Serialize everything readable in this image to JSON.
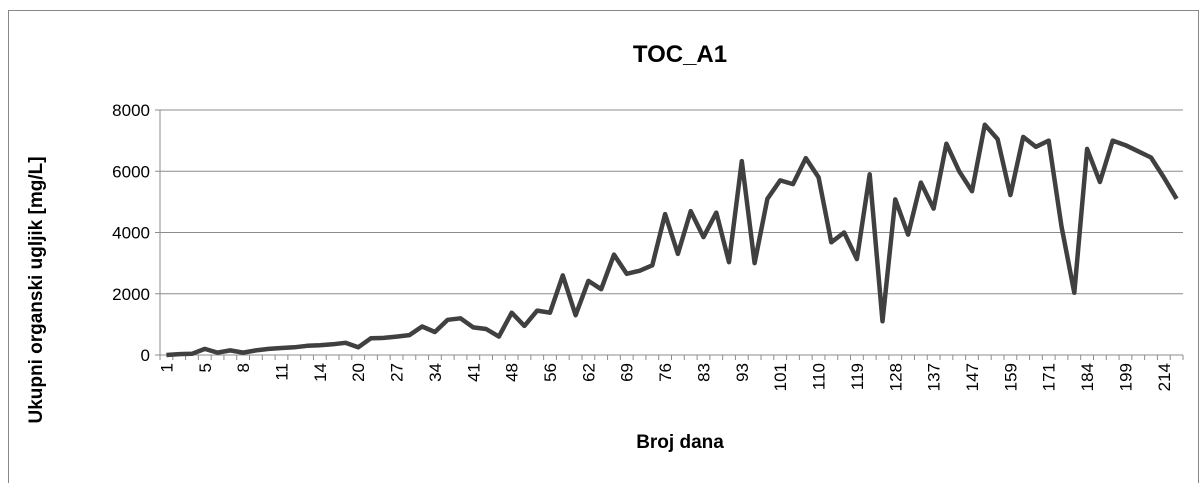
{
  "chart_data": {
    "type": "line",
    "title": "TOC_A1",
    "x_label": "Broj dana",
    "y_label": "Ukupni organski ugljik [mg/L]",
    "categories": [
      "1",
      null,
      null,
      "5",
      null,
      null,
      "8",
      null,
      null,
      "11",
      null,
      null,
      "14",
      null,
      null,
      "20",
      null,
      null,
      "27",
      null,
      null,
      "34",
      null,
      null,
      "41",
      null,
      null,
      "48",
      null,
      null,
      "56",
      null,
      null,
      "62",
      null,
      null,
      "69",
      null,
      null,
      "76",
      null,
      null,
      "83",
      null,
      null,
      "93",
      null,
      null,
      "101",
      null,
      null,
      "110",
      null,
      null,
      "119",
      null,
      null,
      "128",
      null,
      null,
      "137",
      null,
      null,
      "147",
      null,
      null,
      "159",
      null,
      null,
      "171",
      null,
      null,
      "184",
      null,
      null,
      "199",
      null,
      null,
      "214",
      null
    ],
    "values": [
      0,
      30,
      40,
      200,
      80,
      150,
      80,
      150,
      200,
      230,
      250,
      300,
      320,
      350,
      400,
      250,
      550,
      560,
      600,
      650,
      930,
      750,
      1150,
      1200,
      900,
      850,
      600,
      1380,
      950,
      1450,
      1380,
      2600,
      1300,
      2420,
      2150,
      3280,
      2650,
      2750,
      2930,
      4600,
      3300,
      4700,
      3850,
      4650,
      3030,
      6330,
      3000,
      5100,
      5700,
      5580,
      6430,
      5800,
      3680,
      4000,
      3130,
      5900,
      1100,
      5080,
      3930,
      5630,
      4780,
      6900,
      6000,
      5350,
      7520,
      7050,
      5220,
      7120,
      6800,
      7000,
      4200,
      2030,
      6730,
      5650,
      7000,
      6850,
      6650,
      6450,
      5800,
      5100
    ],
    "color": "#404040",
    "ylim": [
      0,
      8000
    ],
    "yticks": [
      0,
      2000,
      4000,
      6000,
      8000
    ],
    "grid": true
  }
}
